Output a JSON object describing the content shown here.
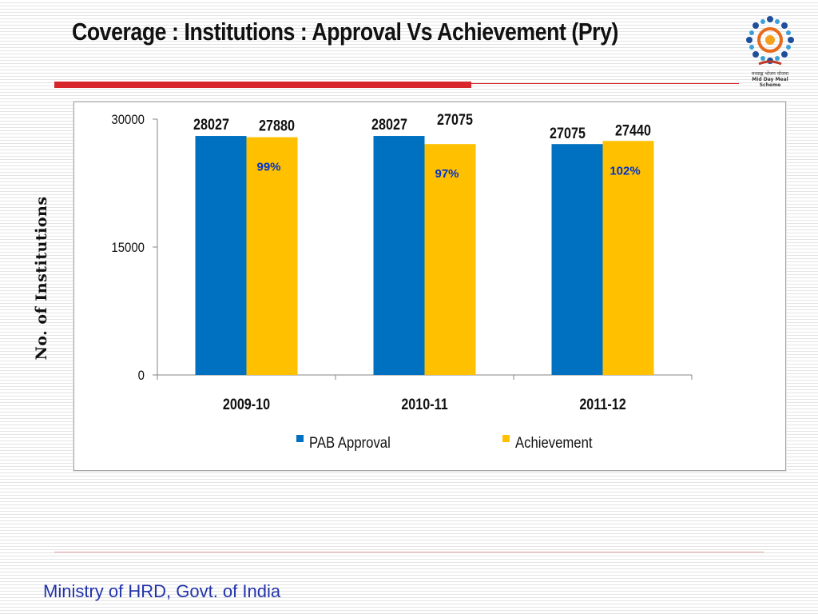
{
  "slide": {
    "title": "Coverage : Institutions : Approval Vs Achievement (Pry)",
    "footer": "Ministry of HRD, Govt. of India",
    "logo": {
      "icon": "mid-day-meal-logo",
      "line1": "मध्याह्न भोजन योजना",
      "line2": "Mid Day Meal Scheme"
    }
  },
  "colors": {
    "approval": "#0070c0",
    "achievement": "#ffc000",
    "accent": "#d7252b",
    "footer_text": "#2233aa"
  },
  "chart_data": {
    "type": "bar",
    "title": "",
    "xlabel": "",
    "ylabel": "No. of Institutions",
    "categories": [
      "2009-10",
      "2010-11",
      "2011-12"
    ],
    "series": [
      {
        "name": "PAB Approval",
        "values": [
          28027,
          28027,
          27075
        ]
      },
      {
        "name": "Achievement",
        "values": [
          27880,
          27075,
          27440
        ]
      }
    ],
    "value_labels": {
      "PAB Approval": [
        "28027",
        "28027",
        "27075"
      ],
      "Achievement": [
        "27880",
        "27075",
        "27440"
      ]
    },
    "percent_labels": [
      "99%",
      "97%",
      "102%"
    ],
    "yticks": [
      "0",
      "15000",
      "30000"
    ],
    "ytick_values": [
      0,
      15000,
      30000
    ],
    "ylim": [
      0,
      30000
    ],
    "grid": false,
    "legend": "bottom"
  }
}
